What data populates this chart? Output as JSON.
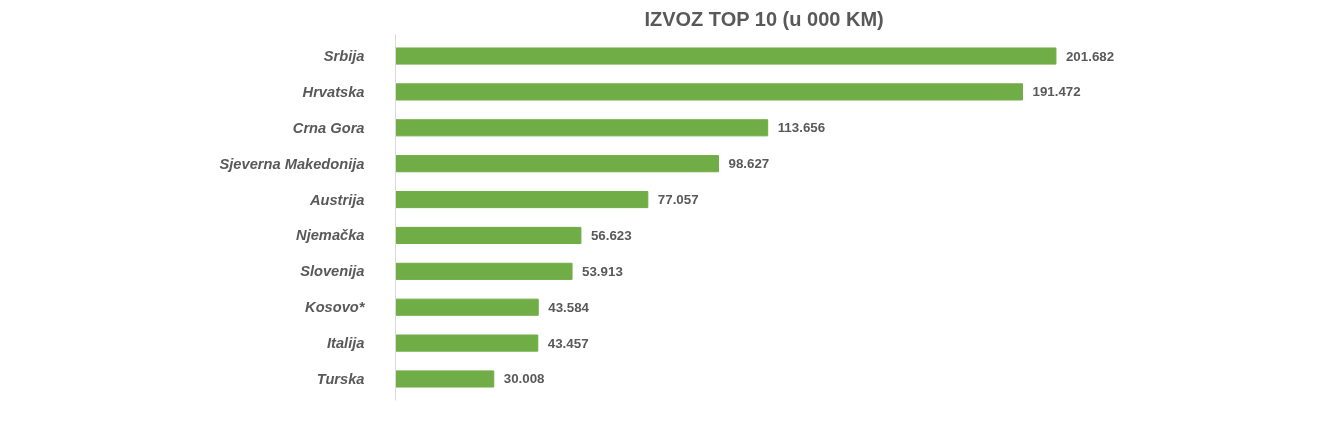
{
  "chart_data": {
    "type": "bar",
    "orientation": "horizontal",
    "title": "IZVOZ TOP 10  (u 000 KM)",
    "categories": [
      "Srbija",
      "Hrvatska",
      "Crna Gora",
      "Sjeverna Makedonija",
      "Austrija",
      "Njemačka",
      "Slovenija",
      "Kosovo*",
      "Italija",
      "Turska"
    ],
    "values": [
      201682,
      191472,
      113656,
      98627,
      77057,
      56623,
      53913,
      43584,
      43457,
      30008
    ],
    "value_labels": [
      "201.682",
      "191.472",
      "113.656",
      "98.627",
      "77.057",
      "56.623",
      "53.913",
      "43.584",
      "43.457",
      "30.008"
    ],
    "color": "#70ad47",
    "tick_labels": "y",
    "grid": false
  }
}
